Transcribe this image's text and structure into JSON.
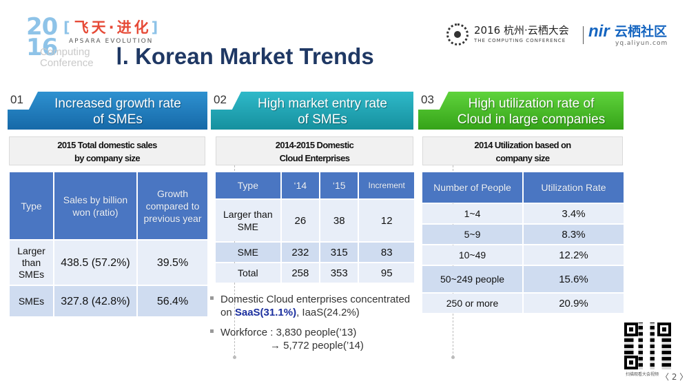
{
  "header": {
    "event_logo": {
      "year_top": "20",
      "year_bottom": "16",
      "cn_text": "飞天·进化",
      "apsara_text": "APSARA EVOLUTION",
      "computing_line1": "Computing",
      "computing_line2": "Conference"
    },
    "title": "Ⅰ. Korean Market Trends",
    "conference_logo": {
      "cn_text": "2016 杭州·云栖大会",
      "en_text": "THE COMPUTING CONFERENCE"
    },
    "community_logo": {
      "mark": "nir",
      "cn_text": "云栖社区",
      "url": "yq.aliyun.com"
    }
  },
  "sections": [
    {
      "number": "01",
      "title_line1": "Increased growth rate",
      "title_line2": "of SMEs",
      "subtitle_line1": "2015 Total domestic sales",
      "subtitle_line2": "by company size",
      "color": "#1f7fc4"
    },
    {
      "number": "02",
      "title_line1": "High market entry rate",
      "title_line2": "of SMEs",
      "subtitle_line1": "2014-2015 Domestic",
      "subtitle_line2": "Cloud Enterprises",
      "color": "#23a8b8"
    },
    {
      "number": "03",
      "title_line1": "High utilization rate of",
      "title_line2": "Cloud in large companies",
      "subtitle_line1": "2014 Utilization based on",
      "subtitle_line2": "company size",
      "color": "#48c02a"
    }
  ],
  "table1": {
    "headers": [
      "Type",
      "Sales by billion won (ratio)",
      "Growth compared to previous year"
    ],
    "rows": [
      [
        "Larger than SMEs",
        "438.5 (57.2%)",
        "39.5%"
      ],
      [
        "SMEs",
        "327.8 (42.8%)",
        "56.4%"
      ]
    ]
  },
  "table2": {
    "headers": [
      "Type",
      "‘14",
      "‘15",
      "Increment"
    ],
    "rows": [
      [
        "Larger than SME",
        "26",
        "38",
        "12"
      ],
      [
        "SME",
        "232",
        "315",
        "83"
      ],
      [
        "Total",
        "258",
        "353",
        "95"
      ]
    ]
  },
  "table3": {
    "headers": [
      "Number of People",
      "Utilization Rate"
    ],
    "rows": [
      [
        "1~4",
        "3.4%"
      ],
      [
        "5~9",
        "8.3%"
      ],
      [
        "10~49",
        "12.2%"
      ],
      [
        "50~249 people",
        "15.6%"
      ],
      [
        "250 or more",
        "20.9%"
      ]
    ]
  },
  "bullets": {
    "b1_text": "Domestic Cloud enterprises concentrated on",
    "b1_highlight": "SaaS(31.1%)",
    "b1_rest": ", IaaS(24.2%)",
    "b2_line1": "Workforce : 3,830 people(’13)",
    "b2_line2": "→ 5,772 people(’14)"
  },
  "footer": {
    "qr_caption": "扫描观看大会视频",
    "page_nav": "〈 2 〉"
  }
}
